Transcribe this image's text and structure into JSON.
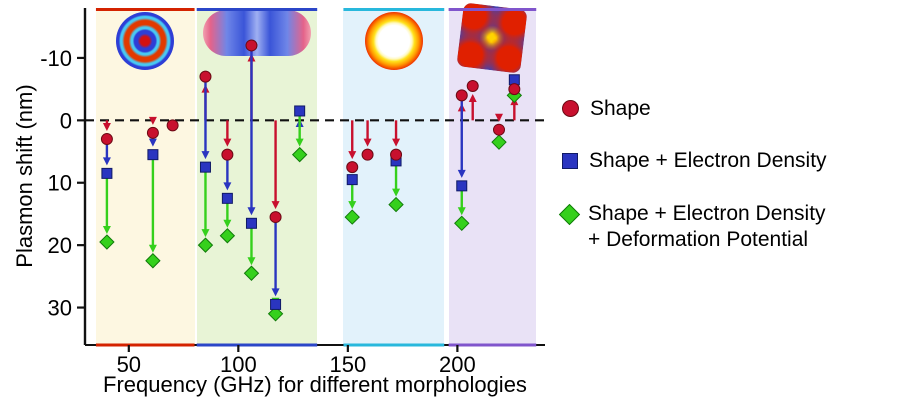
{
  "figure": {
    "ylabel": "Plasmon shift (nm)",
    "xlabel": "Frequency (GHz) for different morphologies"
  },
  "legend": {
    "items": [
      {
        "label": "Shape",
        "marker": "circle",
        "color": "#c8102e"
      },
      {
        "label": "Shape + Electron Density",
        "marker": "square",
        "color": "#2a35c0"
      },
      {
        "label": "Shape + Electron Density\n+ Deformation Potential",
        "marker": "diamond",
        "color": "#35d01c"
      }
    ]
  },
  "chart_data": {
    "type": "scatter",
    "title": "",
    "xlabel": "Frequency (GHz) for different morphologies",
    "ylabel": "Plasmon shift (nm)",
    "xlim": [
      30,
      240
    ],
    "ylim": [
      -18,
      36
    ],
    "y_axis_inverted": true,
    "xticks": [
      50,
      100,
      150,
      200
    ],
    "yticks": [
      -10,
      0,
      10,
      20,
      30
    ],
    "zero_line_dashed": true,
    "grid": false,
    "legend_position": "right",
    "bands": [
      {
        "name": "disk",
        "x0": 35,
        "x1": 80,
        "fill": "#fdf7e1",
        "edge": "#d42300",
        "inset": "disk-mode-pattern"
      },
      {
        "name": "rod",
        "x0": 81,
        "x1": 136,
        "fill": "#e8f4d6",
        "edge": "#2b46c8",
        "inset": "rod-mode-pattern"
      },
      {
        "name": "ring",
        "x0": 148,
        "x1": 194,
        "fill": "#e2f2fb",
        "edge": "#28b8dc",
        "inset": "ring-mode-pattern"
      },
      {
        "name": "cube",
        "x0": 196,
        "x1": 236,
        "fill": "#e9e2f6",
        "edge": "#8055cc",
        "inset": "cube-mode-pattern"
      }
    ],
    "series": [
      {
        "name": "Shape",
        "marker": "circle",
        "color": "#c8102e"
      },
      {
        "name": "Shape + Electron Density",
        "marker": "square",
        "color": "#2a35c0"
      },
      {
        "name": "Shape + Electron Density + Deformation Potential",
        "marker": "diamond",
        "color": "#35d01c"
      }
    ],
    "groups": [
      {
        "freq": 40,
        "shape": 3,
        "shape_ed": 8.5,
        "shape_ed_dp": 19.5
      },
      {
        "freq": 61,
        "shape": 2,
        "shape_ed": 5.5,
        "shape_ed_dp": 22.5
      },
      {
        "freq": 70,
        "shape": 0.8,
        "shape_ed": null,
        "shape_ed_dp": null
      },
      {
        "freq": 85,
        "shape": -7,
        "shape_ed": 7.5,
        "shape_ed_dp": 20
      },
      {
        "freq": 95,
        "shape": 5.5,
        "shape_ed": 12.5,
        "shape_ed_dp": 18.5
      },
      {
        "freq": 106,
        "shape": -12,
        "shape_ed": 16.5,
        "shape_ed_dp": 24.5
      },
      {
        "freq": 117,
        "shape": 15.5,
        "shape_ed": 29.5,
        "shape_ed_dp": 31
      },
      {
        "freq": 128,
        "shape": null,
        "shape_ed": -1.5,
        "shape_ed_dp": 5.5
      },
      {
        "freq": 152,
        "shape": 7.5,
        "shape_ed": 9.5,
        "shape_ed_dp": 15.5
      },
      {
        "freq": 159,
        "shape": 5.5,
        "shape_ed": null,
        "shape_ed_dp": null
      },
      {
        "freq": 172,
        "shape": 5.5,
        "shape_ed": 6.5,
        "shape_ed_dp": 13.5
      },
      {
        "freq": 202,
        "shape": -4,
        "shape_ed": 10.5,
        "shape_ed_dp": 16.5
      },
      {
        "freq": 207,
        "shape": -5.5,
        "shape_ed": null,
        "shape_ed_dp": null
      },
      {
        "freq": 219,
        "shape": 1.5,
        "shape_ed": null,
        "shape_ed_dp": 3.5
      },
      {
        "freq": 226,
        "shape": -5,
        "shape_ed": -6.5,
        "shape_ed_dp": -4
      }
    ]
  }
}
